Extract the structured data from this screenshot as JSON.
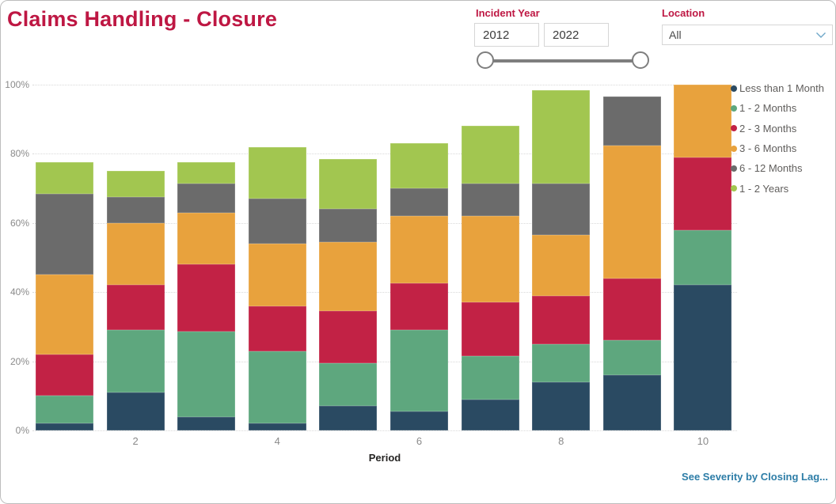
{
  "title": "Claims Handling - Closure",
  "filters": {
    "incident_year": {
      "label": "Incident Year",
      "start": "2012",
      "end": "2022"
    },
    "location": {
      "label": "Location",
      "value": "All"
    }
  },
  "icons": {
    "chevron_down": "chevron-down",
    "slider_handle": "circle-handle"
  },
  "colors": {
    "title": "#be1743",
    "link": "#2d7da7",
    "axis_text": "#8a8a8a",
    "legend_text": "#605e5c"
  },
  "chart_data": {
    "type": "bar",
    "stacked": true,
    "units": "percent",
    "xlabel": "Period",
    "ylabel": "",
    "ylim": [
      0,
      100
    ],
    "grid": "dotted-horizontal",
    "legend_position": "right",
    "yticks": [
      "0%",
      "20%",
      "40%",
      "60%",
      "80%",
      "100%"
    ],
    "categories": [
      "1",
      "2",
      "3",
      "4",
      "5",
      "6",
      "7",
      "8",
      "9",
      "10"
    ],
    "x_tick_labels": [
      "",
      "2",
      "",
      "4",
      "",
      "6",
      "",
      "8",
      "",
      "10"
    ],
    "series": [
      {
        "name": "Less than 1 Month",
        "color": "#2a4a62",
        "values": [
          2,
          11,
          4,
          2,
          7,
          5.5,
          9,
          14,
          16,
          42
        ]
      },
      {
        "name": "1 - 2 Months",
        "color": "#5ea77e",
        "values": [
          8,
          18,
          24.5,
          21,
          12.5,
          23.5,
          12.5,
          11,
          10,
          16
        ]
      },
      {
        "name": "2 - 3 Months",
        "color": "#c22245",
        "values": [
          12,
          13,
          19.5,
          13,
          15,
          13.5,
          15.5,
          14,
          18,
          21
        ]
      },
      {
        "name": "3 - 6 Months",
        "color": "#e8a23d",
        "values": [
          23,
          18,
          15,
          18,
          20,
          19.5,
          25,
          17.5,
          38.5,
          21
        ]
      },
      {
        "name": "6 - 12 Months",
        "color": "#6b6b6b",
        "values": [
          23.5,
          7.5,
          8.5,
          13,
          9.5,
          8,
          9.5,
          15,
          14,
          0
        ]
      },
      {
        "name": "1 - 2 Years",
        "color": "#a2c650",
        "values": [
          9,
          7.5,
          6,
          15,
          14.5,
          13,
          16.5,
          27,
          0,
          0
        ]
      }
    ],
    "bar_totals_percent": [
      77.5,
      75,
      77.5,
      82,
      78.5,
      83,
      88,
      98.5,
      96.5,
      100
    ]
  },
  "footer": {
    "link_label": "See Severity by Closing Lag..."
  }
}
